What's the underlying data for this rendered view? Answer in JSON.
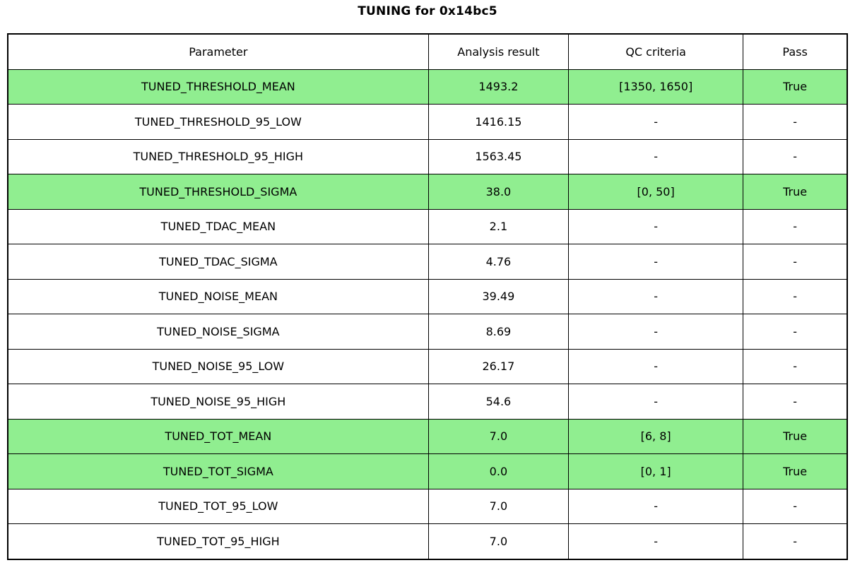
{
  "title": "TUNING for 0x14bc5",
  "colors": {
    "highlight_green": "#90EE90",
    "border": "#000000",
    "background": "#FFFFFF",
    "text": "#000000"
  },
  "chart_data": {
    "type": "table",
    "title": "TUNING for 0x14bc5",
    "columns": [
      "Parameter",
      "Analysis result",
      "QC criteria",
      "Pass"
    ],
    "rows": [
      {
        "parameter": "TUNED_THRESHOLD_MEAN",
        "analysis_result": "1493.2",
        "qc_criteria": "[1350, 1650]",
        "pass": "True",
        "highlight": true
      },
      {
        "parameter": "TUNED_THRESHOLD_95_LOW",
        "analysis_result": "1416.15",
        "qc_criteria": "-",
        "pass": "-",
        "highlight": false
      },
      {
        "parameter": "TUNED_THRESHOLD_95_HIGH",
        "analysis_result": "1563.45",
        "qc_criteria": "-",
        "pass": "-",
        "highlight": false
      },
      {
        "parameter": "TUNED_THRESHOLD_SIGMA",
        "analysis_result": "38.0",
        "qc_criteria": "[0, 50]",
        "pass": "True",
        "highlight": true
      },
      {
        "parameter": "TUNED_TDAC_MEAN",
        "analysis_result": "2.1",
        "qc_criteria": "-",
        "pass": "-",
        "highlight": false
      },
      {
        "parameter": "TUNED_TDAC_SIGMA",
        "analysis_result": "4.76",
        "qc_criteria": "-",
        "pass": "-",
        "highlight": false
      },
      {
        "parameter": "TUNED_NOISE_MEAN",
        "analysis_result": "39.49",
        "qc_criteria": "-",
        "pass": "-",
        "highlight": false
      },
      {
        "parameter": "TUNED_NOISE_SIGMA",
        "analysis_result": "8.69",
        "qc_criteria": "-",
        "pass": "-",
        "highlight": false
      },
      {
        "parameter": "TUNED_NOISE_95_LOW",
        "analysis_result": "26.17",
        "qc_criteria": "-",
        "pass": "-",
        "highlight": false
      },
      {
        "parameter": "TUNED_NOISE_95_HIGH",
        "analysis_result": "54.6",
        "qc_criteria": "-",
        "pass": "-",
        "highlight": false
      },
      {
        "parameter": "TUNED_TOT_MEAN",
        "analysis_result": "7.0",
        "qc_criteria": "[6, 8]",
        "pass": "True",
        "highlight": true
      },
      {
        "parameter": "TUNED_TOT_SIGMA",
        "analysis_result": "0.0",
        "qc_criteria": "[0, 1]",
        "pass": "True",
        "highlight": true
      },
      {
        "parameter": "TUNED_TOT_95_LOW",
        "analysis_result": "7.0",
        "qc_criteria": "-",
        "pass": "-",
        "highlight": false
      },
      {
        "parameter": "TUNED_TOT_95_HIGH",
        "analysis_result": "7.0",
        "qc_criteria": "-",
        "pass": "-",
        "highlight": false
      }
    ],
    "layout": {
      "grid": true,
      "legend": "none",
      "highlight_meaning": "row passes QC criteria"
    }
  }
}
